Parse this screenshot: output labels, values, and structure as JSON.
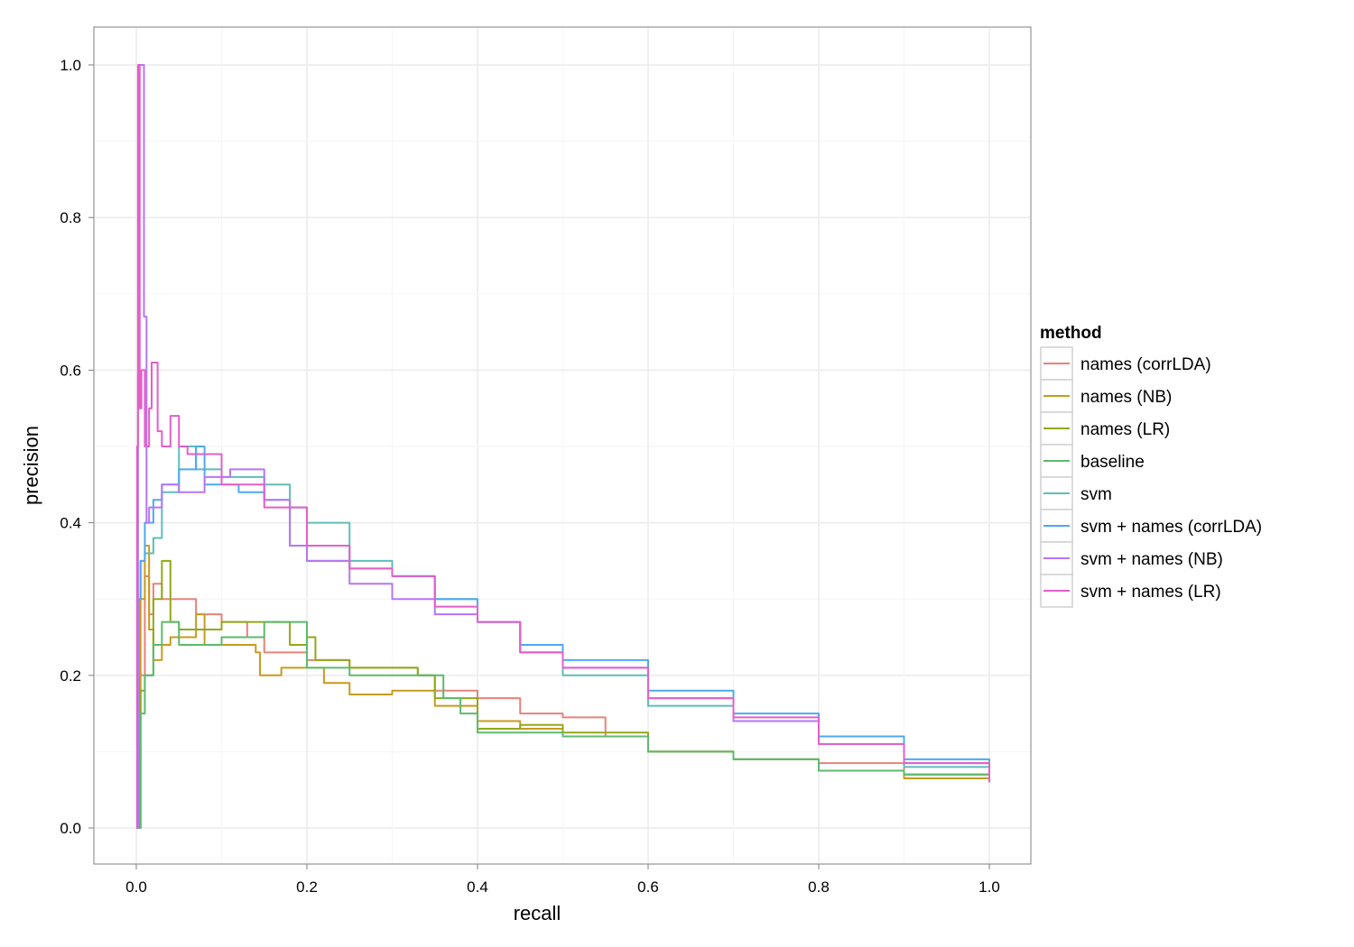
{
  "chart_data": {
    "type": "line",
    "title": "",
    "xlabel": "recall",
    "ylabel": "precision",
    "xlim": [
      -0.05,
      1.05
    ],
    "ylim": [
      -0.05,
      1.05
    ],
    "xticks": [
      "0.0",
      "0.2",
      "0.4",
      "0.6",
      "0.8",
      "1.0"
    ],
    "yticks": [
      "0.0",
      "0.2",
      "0.4",
      "0.6",
      "0.8",
      "1.0"
    ],
    "grid": true,
    "legend": {
      "title": "method",
      "placement": "right"
    },
    "series": [
      {
        "name": "names (corrLDA)",
        "color": "#E8827A",
        "x": [
          0,
          0.003,
          0.01,
          0.015,
          0.02,
          0.03,
          0.05,
          0.07,
          0.1,
          0.13,
          0.15,
          0.2,
          0.25,
          0.3,
          0.33,
          0.35,
          0.4,
          0.45,
          0.5,
          0.55,
          0.6,
          0.7,
          0.8,
          0.9,
          1.0
        ],
        "y": [
          0,
          0.2,
          0.33,
          0.28,
          0.32,
          0.3,
          0.3,
          0.28,
          0.27,
          0.25,
          0.23,
          0.22,
          0.21,
          0.21,
          0.2,
          0.18,
          0.17,
          0.15,
          0.145,
          0.12,
          0.1,
          0.09,
          0.085,
          0.07,
          0.06
        ]
      },
      {
        "name": "names (NB)",
        "color": "#C99A1E",
        "x": [
          0,
          0.005,
          0.01,
          0.015,
          0.02,
          0.03,
          0.04,
          0.07,
          0.08,
          0.1,
          0.14,
          0.145,
          0.17,
          0.2,
          0.22,
          0.25,
          0.3,
          0.35,
          0.4,
          0.45,
          0.5,
          0.6,
          0.7,
          0.8,
          0.9,
          1.0
        ],
        "y": [
          0,
          0.3,
          0.37,
          0.26,
          0.22,
          0.24,
          0.25,
          0.28,
          0.24,
          0.24,
          0.23,
          0.2,
          0.21,
          0.21,
          0.19,
          0.175,
          0.18,
          0.16,
          0.14,
          0.13,
          0.12,
          0.1,
          0.09,
          0.075,
          0.065,
          0.06
        ]
      },
      {
        "name": "names (LR)",
        "color": "#8FAA1A",
        "x": [
          0,
          0.005,
          0.01,
          0.02,
          0.03,
          0.04,
          0.05,
          0.08,
          0.1,
          0.15,
          0.18,
          0.2,
          0.21,
          0.25,
          0.3,
          0.33,
          0.35,
          0.4,
          0.45,
          0.5,
          0.6,
          0.7,
          0.8,
          0.9,
          1.0
        ],
        "y": [
          0,
          0.18,
          0.2,
          0.3,
          0.35,
          0.27,
          0.26,
          0.26,
          0.27,
          0.27,
          0.24,
          0.25,
          0.22,
          0.21,
          0.21,
          0.2,
          0.17,
          0.13,
          0.135,
          0.125,
          0.1,
          0.09,
          0.075,
          0.07,
          0.06
        ]
      },
      {
        "name": "baseline",
        "color": "#5CBA6E",
        "x": [
          0,
          0.005,
          0.01,
          0.02,
          0.03,
          0.05,
          0.06,
          0.1,
          0.15,
          0.2,
          0.25,
          0.3,
          0.33,
          0.36,
          0.38,
          0.4,
          0.5,
          0.6,
          0.7,
          0.8,
          0.9,
          1.0
        ],
        "y": [
          0,
          0.15,
          0.2,
          0.24,
          0.27,
          0.24,
          0.24,
          0.25,
          0.27,
          0.21,
          0.2,
          0.2,
          0.2,
          0.17,
          0.15,
          0.125,
          0.12,
          0.1,
          0.09,
          0.075,
          0.07,
          0.06
        ]
      },
      {
        "name": "svm",
        "color": "#5FBDB9",
        "x": [
          0,
          0.003,
          0.005,
          0.01,
          0.02,
          0.03,
          0.05,
          0.07,
          0.1,
          0.15,
          0.18,
          0.2,
          0.25,
          0.3,
          0.35,
          0.4,
          0.45,
          0.5,
          0.6,
          0.7,
          0.8,
          0.9,
          1.0
        ],
        "y": [
          0,
          0.3,
          0.35,
          0.36,
          0.38,
          0.44,
          0.5,
          0.47,
          0.46,
          0.45,
          0.42,
          0.4,
          0.35,
          0.33,
          0.3,
          0.27,
          0.23,
          0.2,
          0.16,
          0.14,
          0.11,
          0.08,
          0.06
        ]
      },
      {
        "name": "svm + names (corrLDA)",
        "color": "#4EA8F2",
        "x": [
          0,
          0.003,
          0.005,
          0.01,
          0.02,
          0.03,
          0.05,
          0.07,
          0.08,
          0.1,
          0.12,
          0.15,
          0.18,
          0.2,
          0.25,
          0.3,
          0.35,
          0.4,
          0.45,
          0.5,
          0.6,
          0.7,
          0.8,
          0.9,
          1.0
        ],
        "y": [
          0,
          0.3,
          0.35,
          0.4,
          0.43,
          0.45,
          0.47,
          0.5,
          0.45,
          0.45,
          0.44,
          0.43,
          0.37,
          0.35,
          0.34,
          0.33,
          0.3,
          0.27,
          0.24,
          0.22,
          0.18,
          0.15,
          0.12,
          0.09,
          0.06
        ]
      },
      {
        "name": "svm + names (NB)",
        "color": "#B576F5",
        "x": [
          0,
          0.002,
          0.003,
          0.008,
          0.009,
          0.012,
          0.015,
          0.03,
          0.05,
          0.08,
          0.11,
          0.15,
          0.18,
          0.2,
          0.25,
          0.3,
          0.35,
          0.4,
          0.45,
          0.5,
          0.6,
          0.7,
          0.8,
          0.9,
          1.0
        ],
        "y": [
          0,
          0.6,
          1.0,
          1.0,
          0.67,
          0.4,
          0.42,
          0.45,
          0.44,
          0.46,
          0.47,
          0.43,
          0.37,
          0.35,
          0.32,
          0.3,
          0.28,
          0.27,
          0.23,
          0.21,
          0.17,
          0.14,
          0.11,
          0.085,
          0.06
        ]
      },
      {
        "name": "svm + names (LR)",
        "color": "#E45FC8",
        "x": [
          0,
          0.001,
          0.002,
          0.004,
          0.006,
          0.01,
          0.015,
          0.018,
          0.025,
          0.03,
          0.04,
          0.05,
          0.06,
          0.1,
          0.15,
          0.2,
          0.25,
          0.3,
          0.35,
          0.4,
          0.45,
          0.5,
          0.6,
          0.7,
          0.8,
          0.9,
          1.0
        ],
        "y": [
          0,
          0.5,
          1.0,
          0.55,
          0.6,
          0.5,
          0.55,
          0.61,
          0.52,
          0.5,
          0.54,
          0.5,
          0.49,
          0.45,
          0.42,
          0.37,
          0.34,
          0.33,
          0.29,
          0.27,
          0.23,
          0.21,
          0.17,
          0.145,
          0.11,
          0.085,
          0.06
        ]
      }
    ]
  }
}
